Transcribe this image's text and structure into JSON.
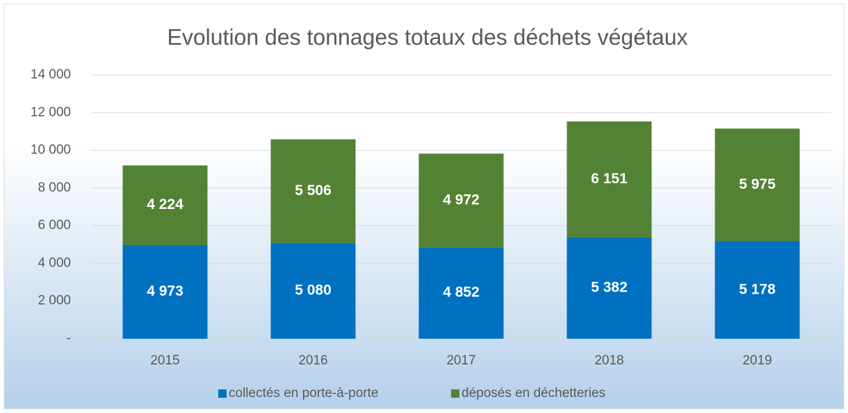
{
  "chart_data": {
    "type": "stacked_bar",
    "title": "Evolution des tonnages totaux des déchets végétaux",
    "categories": [
      "2015",
      "2016",
      "2017",
      "2018",
      "2019"
    ],
    "series": [
      {
        "name": "collectés en porte-à-porte",
        "color": "#0070c0",
        "values": [
          4973,
          5080,
          4852,
          5382,
          5178
        ],
        "value_labels": [
          "4 973",
          "5 080",
          "4 852",
          "5 382",
          "5 178"
        ]
      },
      {
        "name": "déposés en déchetteries",
        "color": "#548235",
        "values": [
          4224,
          5506,
          4972,
          6151,
          5975
        ],
        "value_labels": [
          "4 224",
          "5 506",
          "4 972",
          "6 151",
          "5 975"
        ]
      }
    ],
    "ylim": [
      0,
      14000
    ],
    "yticks": [
      {
        "value": 0,
        "label": "-"
      },
      {
        "value": 2000,
        "label": "2 000"
      },
      {
        "value": 4000,
        "label": "4 000"
      },
      {
        "value": 6000,
        "label": "6 000"
      },
      {
        "value": 8000,
        "label": "8 000"
      },
      {
        "value": 10000,
        "label": "10 000"
      },
      {
        "value": 12000,
        "label": "12 000"
      },
      {
        "value": 14000,
        "label": "14 000"
      }
    ],
    "grid": true,
    "legend": "bottom"
  }
}
